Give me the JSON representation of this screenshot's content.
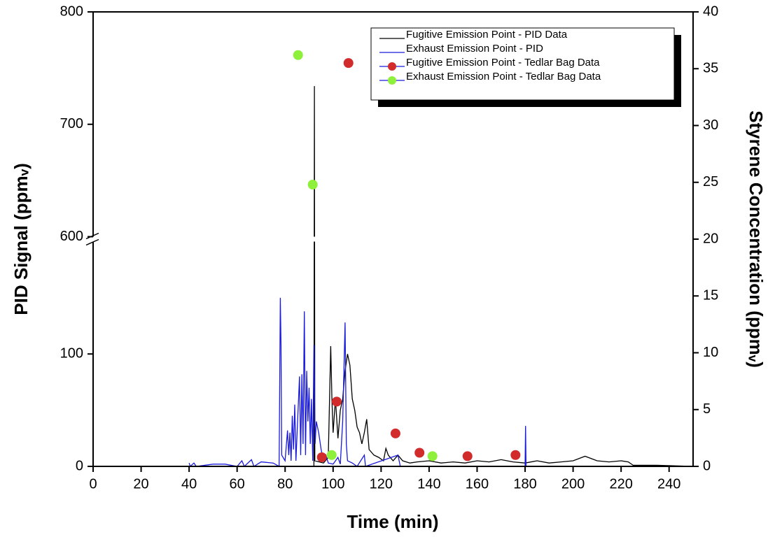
{
  "chart_data": {
    "type": "line",
    "xlabel": "Time (min)",
    "ylabel": "PID Signal (ppmᵥ)",
    "y2label": "Styrene Concentration (ppmᵥ)",
    "xlim": [
      0,
      250
    ],
    "xticks": [
      0,
      20,
      40,
      60,
      80,
      100,
      120,
      140,
      160,
      180,
      200,
      220,
      240
    ],
    "ylim": [
      0,
      800
    ],
    "ybreak": [
      200,
      600
    ],
    "yticks": [
      0,
      100,
      600,
      700,
      800
    ],
    "y2lim": [
      0,
      40
    ],
    "y2ticks": [
      0,
      5,
      10,
      15,
      20,
      25,
      30,
      35,
      40
    ],
    "legend": "upper right",
    "series": [
      {
        "name": "Fugitive Emission Point - PID Data",
        "color": "#000000",
        "kind": "line",
        "x": [
          92,
          92.2,
          92.4,
          96,
          98,
          99,
          99.5,
          100,
          101,
          102,
          103,
          104,
          105,
          106,
          107,
          108,
          109,
          110,
          111,
          112,
          113,
          114,
          115,
          117,
          119,
          121,
          122,
          123,
          125,
          127,
          129,
          132,
          135,
          140,
          145,
          150,
          155,
          160,
          165,
          170,
          175,
          180,
          185,
          190,
          195,
          200,
          205,
          210,
          215,
          220,
          223,
          225,
          235,
          250
        ],
        "values": [
          0,
          734,
          5,
          3,
          8,
          107,
          60,
          30,
          60,
          25,
          50,
          60,
          85,
          100,
          90,
          60,
          50,
          35,
          30,
          20,
          30,
          42,
          15,
          10,
          8,
          5,
          16,
          10,
          5,
          10,
          5,
          3,
          4,
          5,
          3,
          4,
          3,
          5,
          4,
          6,
          4,
          3,
          5,
          3,
          4,
          5,
          9,
          5,
          4,
          5,
          4,
          1,
          1,
          0
        ]
      },
      {
        "name": "Exhaust Emission Point - PID",
        "color": "#1a1adb",
        "kind": "line",
        "x": [
          40,
          40.5,
          42,
          43,
          50,
          55,
          60,
          62,
          63,
          66,
          67,
          70,
          75,
          77.5,
          78,
          78.3,
          78.6,
          80,
          81,
          81.5,
          82,
          82.5,
          83,
          83.5,
          84,
          84.5,
          85,
          86,
          86.5,
          87,
          87.5,
          88,
          88.5,
          89,
          89.5,
          90,
          90.5,
          91,
          91.5,
          92,
          92.5,
          93,
          94,
          95,
          96,
          97,
          98,
          100,
          102,
          103,
          104,
          105,
          105.5,
          106,
          108,
          110,
          113,
          113.5,
          127,
          128,
          180,
          180.2,
          180.4,
          182
        ],
        "values": [
          3,
          0,
          3,
          0,
          2,
          2,
          0,
          5,
          0,
          6,
          0,
          4,
          3,
          0,
          150,
          108,
          10,
          5,
          32,
          10,
          30,
          5,
          45,
          15,
          55,
          5,
          30,
          80,
          10,
          82,
          20,
          138,
          10,
          85,
          40,
          70,
          20,
          60,
          5,
          108,
          20,
          40,
          30,
          15,
          5,
          10,
          3,
          2,
          8,
          2,
          40,
          128,
          20,
          5,
          3,
          0,
          10,
          0,
          10,
          0,
          0,
          36,
          0,
          0
        ]
      },
      {
        "name": "Fugitive Emission Point - Tedlar Bag Data",
        "color": "#d12b2b",
        "kind": "points",
        "axis": "y2",
        "x": [
          95.3,
          101.5,
          106.4,
          126,
          136,
          156,
          176
        ],
        "values": [
          0.8,
          5.7,
          35.5,
          2.9,
          1.2,
          0.9,
          1.0
        ]
      },
      {
        "name": "Exhaust Emission Point - Tedlar Bag Data",
        "color": "#8ef03a",
        "kind": "points",
        "axis": "y2",
        "x": [
          85.4,
          91.5,
          99.4,
          141.4
        ],
        "values": [
          36.2,
          24.8,
          1.0,
          0.9
        ]
      }
    ]
  }
}
